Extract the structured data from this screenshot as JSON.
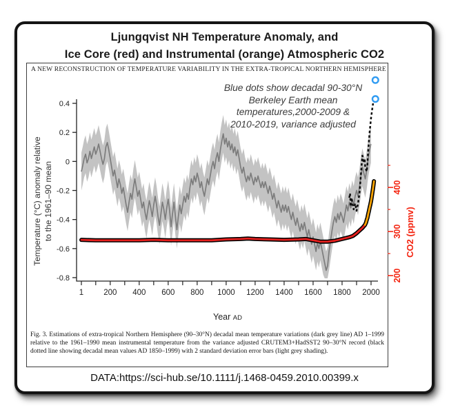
{
  "title": {
    "line1": "Ljungqvist NH Temperature Anomaly, and",
    "line2": "Ice Core (red) and Instrumental (orange) Atmospheric CO2"
  },
  "figure": {
    "header": "A NEW RECONSTRUCTION OF TEMPERATURE VARIABILITY IN THE EXTRA-TROPICAL NORTHERN HEMISPHERE",
    "annotation": {
      "lines": [
        "Blue dots show decadal 90-30°N",
        "Berkeley Earth mean",
        "temperatures,2000-2009 &",
        "2010-2019, variance adjusted"
      ]
    },
    "caption": "Fig. 3. Estimations of extra-tropical Northern Hemisphere (90–30°N) decadal mean temperature variations (dark grey line) AD 1–1999 relative to the 1961–1990 mean instrumental temperature from the variance adjusted CRUTEM3+HadSST2 90–30°N record (black dotted line showing decadal mean values AD 1850–1999) with 2 standard deviation error bars (light grey shading)."
  },
  "source_line": "DATA:https://sci-hub.se/10.1111/j.1468-0459.2010.00399.x",
  "chart_data": {
    "type": "line",
    "x_axis": {
      "label": "Year",
      "label_suffix": "AD",
      "ticks": [
        1,
        200,
        400,
        600,
        800,
        1000,
        1200,
        1400,
        1600,
        1800,
        2000
      ],
      "minor_tick_step": 100,
      "range": [
        1,
        2040
      ]
    },
    "y_axis_left": {
      "label_line1": "Temperature (°C) anomaly relative",
      "label_line2": "to the 1961–90 mean",
      "ticks": [
        0.4,
        0.2,
        0,
        -0.2,
        -0.4,
        -0.6,
        -0.8
      ],
      "range": [
        -0.85,
        0.45
      ]
    },
    "y_axis_right": {
      "label": "CO2 (ppmv)",
      "ticks": [
        200,
        300,
        400
      ],
      "minor_ticks": [
        250,
        350,
        450
      ],
      "color": "#f42410",
      "range": [
        190,
        460
      ]
    },
    "series": [
      {
        "name": "ljungqvist-reconstruction",
        "legend": "decadal mean temperature variations (dark grey line)",
        "style": "solid",
        "color": "#7c7c7c",
        "band_halfwidth": 0.13,
        "band_color": "#c3c3c3",
        "band_legend": "2 standard deviation error bars (light grey shading)",
        "points": [
          [
            1,
            -0.07
          ],
          [
            10,
            -0.03
          ],
          [
            20,
            0.02
          ],
          [
            30,
            0.05
          ],
          [
            40,
            -0.01
          ],
          [
            50,
            0.02
          ],
          [
            60,
            0.07
          ],
          [
            70,
            0.02
          ],
          [
            80,
            0.06
          ],
          [
            90,
            0.1
          ],
          [
            100,
            0.05
          ],
          [
            110,
            0.08
          ],
          [
            120,
            0.12
          ],
          [
            130,
            0.07
          ],
          [
            140,
            0.02
          ],
          [
            150,
            -0.02
          ],
          [
            160,
            0.02
          ],
          [
            170,
            0.1
          ],
          [
            180,
            0.13
          ],
          [
            190,
            0.08
          ],
          [
            200,
            0.02
          ],
          [
            210,
            -0.04
          ],
          [
            220,
            -0.1
          ],
          [
            230,
            -0.06
          ],
          [
            240,
            -0.12
          ],
          [
            250,
            -0.18
          ],
          [
            260,
            -0.12
          ],
          [
            270,
            -0.16
          ],
          [
            280,
            -0.22
          ],
          [
            290,
            -0.18
          ],
          [
            300,
            -0.24
          ],
          [
            310,
            -0.3
          ],
          [
            320,
            -0.35
          ],
          [
            330,
            -0.28
          ],
          [
            340,
            -0.22
          ],
          [
            350,
            -0.26
          ],
          [
            360,
            -0.18
          ],
          [
            370,
            -0.12
          ],
          [
            380,
            -0.18
          ],
          [
            390,
            -0.24
          ],
          [
            400,
            -0.2
          ],
          [
            410,
            -0.26
          ],
          [
            420,
            -0.32
          ],
          [
            430,
            -0.28
          ],
          [
            440,
            -0.35
          ],
          [
            450,
            -0.4
          ],
          [
            460,
            -0.33
          ],
          [
            470,
            -0.27
          ],
          [
            480,
            -0.32
          ],
          [
            490,
            -0.38
          ],
          [
            500,
            -0.3
          ],
          [
            510,
            -0.24
          ],
          [
            520,
            -0.3
          ],
          [
            530,
            -0.38
          ],
          [
            540,
            -0.44
          ],
          [
            550,
            -0.36
          ],
          [
            560,
            -0.28
          ],
          [
            570,
            -0.33
          ],
          [
            580,
            -0.4
          ],
          [
            590,
            -0.32
          ],
          [
            600,
            -0.26
          ],
          [
            610,
            -0.34
          ],
          [
            620,
            -0.45
          ],
          [
            630,
            -0.36
          ],
          [
            640,
            -0.28
          ],
          [
            650,
            -0.38
          ],
          [
            660,
            -0.47
          ],
          [
            670,
            -0.38
          ],
          [
            680,
            -0.3
          ],
          [
            690,
            -0.36
          ],
          [
            700,
            -0.3
          ],
          [
            710,
            -0.24
          ],
          [
            720,
            -0.28
          ],
          [
            730,
            -0.22
          ],
          [
            740,
            -0.26
          ],
          [
            750,
            -0.18
          ],
          [
            760,
            -0.12
          ],
          [
            770,
            -0.16
          ],
          [
            780,
            -0.1
          ],
          [
            790,
            -0.14
          ],
          [
            800,
            -0.08
          ],
          [
            810,
            -0.12
          ],
          [
            820,
            -0.18
          ],
          [
            830,
            -0.14
          ],
          [
            840,
            -0.2
          ],
          [
            850,
            -0.24
          ],
          [
            860,
            -0.18
          ],
          [
            870,
            -0.12
          ],
          [
            880,
            -0.16
          ],
          [
            890,
            -0.1
          ],
          [
            900,
            -0.04
          ],
          [
            910,
            0.0
          ],
          [
            920,
            -0.05
          ],
          [
            930,
            0.02
          ],
          [
            940,
            0.06
          ],
          [
            950,
            0.0
          ],
          [
            960,
            0.08
          ],
          [
            970,
            0.14
          ],
          [
            980,
            0.19
          ],
          [
            990,
            0.12
          ],
          [
            1000,
            0.16
          ],
          [
            1010,
            0.1
          ],
          [
            1020,
            0.14
          ],
          [
            1030,
            0.08
          ],
          [
            1040,
            0.12
          ],
          [
            1050,
            0.06
          ],
          [
            1060,
            0.1
          ],
          [
            1070,
            0.04
          ],
          [
            1080,
            0.08
          ],
          [
            1090,
            0.02
          ],
          [
            1100,
            -0.04
          ],
          [
            1110,
            -0.08
          ],
          [
            1120,
            -0.04
          ],
          [
            1130,
            -0.1
          ],
          [
            1140,
            -0.14
          ],
          [
            1150,
            -0.1
          ],
          [
            1160,
            -0.13
          ],
          [
            1170,
            -0.08
          ],
          [
            1180,
            -0.12
          ],
          [
            1190,
            -0.16
          ],
          [
            1200,
            -0.11
          ],
          [
            1210,
            -0.14
          ],
          [
            1220,
            -0.1
          ],
          [
            1230,
            -0.14
          ],
          [
            1240,
            -0.18
          ],
          [
            1250,
            -0.14
          ],
          [
            1260,
            -0.18
          ],
          [
            1270,
            -0.14
          ],
          [
            1280,
            -0.18
          ],
          [
            1290,
            -0.22
          ],
          [
            1300,
            -0.17
          ],
          [
            1310,
            -0.21
          ],
          [
            1320,
            -0.26
          ],
          [
            1330,
            -0.22
          ],
          [
            1340,
            -0.27
          ],
          [
            1350,
            -0.32
          ],
          [
            1360,
            -0.27
          ],
          [
            1370,
            -0.31
          ],
          [
            1380,
            -0.35
          ],
          [
            1390,
            -0.3
          ],
          [
            1400,
            -0.34
          ],
          [
            1410,
            -0.3
          ],
          [
            1420,
            -0.35
          ],
          [
            1430,
            -0.31
          ],
          [
            1440,
            -0.36
          ],
          [
            1450,
            -0.4
          ],
          [
            1460,
            -0.35
          ],
          [
            1470,
            -0.4
          ],
          [
            1480,
            -0.44
          ],
          [
            1490,
            -0.39
          ],
          [
            1500,
            -0.44
          ],
          [
            1510,
            -0.48
          ],
          [
            1520,
            -0.43
          ],
          [
            1530,
            -0.47
          ],
          [
            1540,
            -0.42
          ],
          [
            1550,
            -0.47
          ],
          [
            1560,
            -0.52
          ],
          [
            1570,
            -0.47
          ],
          [
            1580,
            -0.52
          ],
          [
            1590,
            -0.57
          ],
          [
            1600,
            -0.52
          ],
          [
            1610,
            -0.57
          ],
          [
            1620,
            -0.62
          ],
          [
            1630,
            -0.56
          ],
          [
            1640,
            -0.6
          ],
          [
            1650,
            -0.55
          ],
          [
            1660,
            -0.6
          ],
          [
            1670,
            -0.65
          ],
          [
            1680,
            -0.7
          ],
          [
            1690,
            -0.75
          ],
          [
            1700,
            -0.72
          ],
          [
            1710,
            -0.62
          ],
          [
            1720,
            -0.55
          ],
          [
            1730,
            -0.48
          ],
          [
            1740,
            -0.42
          ],
          [
            1750,
            -0.38
          ],
          [
            1760,
            -0.42
          ],
          [
            1770,
            -0.36
          ],
          [
            1780,
            -0.4
          ],
          [
            1790,
            -0.35
          ],
          [
            1800,
            -0.38
          ],
          [
            1810,
            -0.42
          ],
          [
            1820,
            -0.36
          ],
          [
            1830,
            -0.3
          ],
          [
            1840,
            -0.34
          ],
          [
            1850,
            -0.28
          ],
          [
            1860,
            -0.32
          ],
          [
            1870,
            -0.26
          ],
          [
            1880,
            -0.3
          ],
          [
            1890,
            -0.24
          ],
          [
            1900,
            -0.2
          ],
          [
            1910,
            -0.24
          ],
          [
            1920,
            -0.18
          ],
          [
            1930,
            -0.1
          ],
          [
            1940,
            -0.04
          ],
          [
            1950,
            -0.08
          ],
          [
            1960,
            -0.12
          ],
          [
            1970,
            -0.06
          ],
          [
            1980,
            0.02
          ],
          [
            1990,
            0.08
          ],
          [
            1999,
            0.12
          ]
        ]
      },
      {
        "name": "instrumental-temperature",
        "legend": "CRUTEM3+HadSST2 90–30°N record (black dotted line)",
        "style": "dashed",
        "color": "#0d0d0d",
        "points": [
          [
            1850,
            -0.25
          ],
          [
            1855,
            -0.22
          ],
          [
            1860,
            -0.31
          ],
          [
            1865,
            -0.25
          ],
          [
            1870,
            -0.28
          ],
          [
            1880,
            -0.33
          ],
          [
            1890,
            -0.29
          ],
          [
            1900,
            -0.34
          ],
          [
            1910,
            -0.29
          ],
          [
            1920,
            -0.22
          ],
          [
            1930,
            -0.09
          ],
          [
            1940,
            0.04
          ],
          [
            1950,
            -0.01
          ],
          [
            1955,
            0.02
          ],
          [
            1960,
            -0.04
          ],
          [
            1970,
            -0.07
          ],
          [
            1975,
            -0.02
          ],
          [
            1980,
            0.07
          ],
          [
            1990,
            0.2
          ],
          [
            2000,
            0.3
          ],
          [
            2008,
            0.36
          ],
          [
            2014,
            0.4
          ]
        ]
      },
      {
        "name": "co2-ice-core",
        "legend": "Ice Core (red) Atmospheric CO2",
        "axis": "right",
        "style": "solid-outlined",
        "color": "#e8201e",
        "outline": "#000000",
        "points": [
          [
            1,
            281
          ],
          [
            100,
            280
          ],
          [
            200,
            280
          ],
          [
            300,
            280
          ],
          [
            400,
            280
          ],
          [
            500,
            281
          ],
          [
            600,
            280
          ],
          [
            700,
            280
          ],
          [
            800,
            280
          ],
          [
            900,
            280
          ],
          [
            1000,
            282
          ],
          [
            1100,
            283
          ],
          [
            1150,
            284
          ],
          [
            1200,
            283
          ],
          [
            1300,
            282
          ],
          [
            1400,
            281
          ],
          [
            1500,
            282
          ],
          [
            1550,
            283
          ],
          [
            1600,
            280
          ],
          [
            1650,
            277
          ],
          [
            1700,
            277
          ],
          [
            1750,
            279
          ],
          [
            1800,
            283
          ],
          [
            1850,
            287
          ],
          [
            1875,
            290
          ],
          [
            1900,
            296
          ],
          [
            1920,
            302
          ],
          [
            1940,
            308
          ],
          [
            1958,
            315
          ]
        ]
      },
      {
        "name": "co2-instrumental",
        "legend": "Instrumental (orange) Atmospheric CO2",
        "axis": "right",
        "style": "solid-outlined",
        "color": "#f8a300",
        "outline": "#000000",
        "points": [
          [
            1958,
            315
          ],
          [
            1965,
            320
          ],
          [
            1970,
            326
          ],
          [
            1975,
            331
          ],
          [
            1980,
            339
          ],
          [
            1985,
            346
          ],
          [
            1990,
            354
          ],
          [
            1995,
            361
          ],
          [
            2000,
            369
          ],
          [
            2005,
            379
          ],
          [
            2010,
            390
          ],
          [
            2015,
            401
          ],
          [
            2020,
            414
          ]
        ]
      },
      {
        "name": "berkeley-earth-decadal",
        "legend": "Blue dots: decadal 90-30°N Berkeley Earth means",
        "style": "open-dots",
        "color": "#2f9bf2",
        "x_year": 2030,
        "values": [
          0.43,
          0.56
        ],
        "value_labels": [
          "2000-2009",
          "2010-2019"
        ]
      }
    ]
  }
}
